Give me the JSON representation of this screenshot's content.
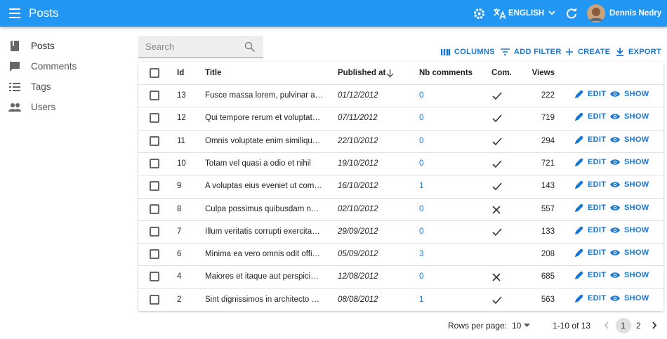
{
  "app_bar": {
    "title": "Posts",
    "language": "ENGLISH",
    "user": "Dennis Nedry"
  },
  "sidebar": {
    "items": [
      "Posts",
      "Comments",
      "Tags",
      "Users"
    ]
  },
  "search": {
    "placeholder": "Search"
  },
  "toolbar": {
    "columns": "COLUMNS",
    "add_filter": "ADD FILTER",
    "create": "CREATE",
    "export": "EXPORT"
  },
  "table": {
    "headers": {
      "id": "Id",
      "title": "Title",
      "published_at": "Published at",
      "nb_comments": "Nb comments",
      "commentable": "Com.",
      "views": "Views"
    },
    "actions": {
      "edit": "EDIT",
      "show": "SHOW"
    },
    "rows": [
      {
        "id": 13,
        "title": "Fusce massa lorem, pulvinar a…",
        "published_at": "01/12/2012",
        "nb_comments": 0,
        "commentable": true,
        "views": 222
      },
      {
        "id": 12,
        "title": "Qui tempore rerum et voluptat…",
        "published_at": "07/11/2012",
        "nb_comments": 0,
        "commentable": true,
        "views": 719
      },
      {
        "id": 11,
        "title": "Omnis voluptate enim similiqu…",
        "published_at": "22/10/2012",
        "nb_comments": 0,
        "commentable": true,
        "views": 294
      },
      {
        "id": 10,
        "title": "Totam vel quasi a odio et nihil",
        "published_at": "19/10/2012",
        "nb_comments": 0,
        "commentable": true,
        "views": 721
      },
      {
        "id": 9,
        "title": "A voluptas eius eveniet ut com…",
        "published_at": "16/10/2012",
        "nb_comments": 1,
        "commentable": true,
        "views": 143
      },
      {
        "id": 8,
        "title": "Culpa possimus quibusdam n…",
        "published_at": "02/10/2012",
        "nb_comments": 0,
        "commentable": false,
        "views": 557
      },
      {
        "id": 7,
        "title": "Illum veritatis corrupti exercita…",
        "published_at": "29/09/2012",
        "nb_comments": 0,
        "commentable": true,
        "views": 133
      },
      {
        "id": 6,
        "title": "Minima ea vero omnis odit offi…",
        "published_at": "05/09/2012",
        "nb_comments": 3,
        "commentable": null,
        "views": 208
      },
      {
        "id": 4,
        "title": "Maiores et itaque aut perspici…",
        "published_at": "12/08/2012",
        "nb_comments": 0,
        "commentable": false,
        "views": 685
      },
      {
        "id": 2,
        "title": "Sint dignissimos in architecto …",
        "published_at": "08/08/2012",
        "nb_comments": 1,
        "commentable": true,
        "views": 563
      }
    ]
  },
  "pagination": {
    "rows_per_page_label": "Rows per page:",
    "rows_per_page": 10,
    "range": "1-10 of 13",
    "pages": [
      1,
      2
    ]
  }
}
